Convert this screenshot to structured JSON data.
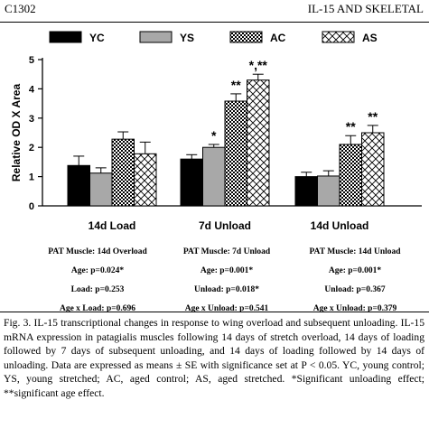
{
  "header": {
    "left": "C1302",
    "right": "IL-15 AND SKELETAL"
  },
  "chart_data": {
    "type": "bar",
    "ylabel": "Relative OD X Area",
    "ylim": [
      0,
      5
    ],
    "yticks": [
      "0",
      "1",
      "2",
      "3",
      "4",
      "5"
    ],
    "categories": [
      "14d Load",
      "7d Unload",
      "14d Unload"
    ],
    "series": [
      {
        "name": "YC",
        "values": [
          1.38,
          1.6,
          1.0
        ],
        "errors": [
          0.32,
          0.15,
          0.15
        ]
      },
      {
        "name": "YS",
        "values": [
          1.12,
          2.0,
          1.02
        ],
        "errors": [
          0.18,
          0.1,
          0.18
        ]
      },
      {
        "name": "AC",
        "values": [
          2.28,
          3.58,
          2.1
        ],
        "errors": [
          0.25,
          0.25,
          0.3
        ]
      },
      {
        "name": "AS",
        "values": [
          1.78,
          4.3,
          2.5
        ],
        "errors": [
          0.4,
          0.2,
          0.25
        ]
      }
    ],
    "annotations": [
      {
        "group": 1,
        "series": 1,
        "text": "*"
      },
      {
        "group": 1,
        "series": 2,
        "text": "**"
      },
      {
        "group": 1,
        "series": 3,
        "text": "*,**"
      },
      {
        "group": 2,
        "series": 2,
        "text": "**"
      },
      {
        "group": 2,
        "series": 3,
        "text": "**"
      }
    ],
    "legend": "top",
    "grid": false
  },
  "stats": [
    {
      "title": "PAT Muscle: 14d Overload",
      "age": "Age: p=0.024*",
      "second": "Load: p=0.253",
      "interaction": "Age x Load: p=0.696"
    },
    {
      "title": "PAT Muscle: 7d Unload",
      "age": "Age: p=0.001*",
      "second": "Unload: p=0.018*",
      "interaction": "Age x Unload: p=0.541"
    },
    {
      "title": "PAT Muscle: 14d Unload",
      "age": "Age: p=0.001*",
      "second": "Unload: p=0.367",
      "interaction": "Age x Unload: p=0.379"
    }
  ],
  "caption": "Fig. 3. IL-15 transcriptional changes in response to wing overload and subsequent unloading. IL-15 mRNA expression in patagialis muscles following 14 days of stretch overload, 14 days of loading followed by 7 days of subsequent unloading, and 14 days of loading followed by 14 days of unloading. Data are expressed as means ± SE with significance set at P < 0.05. YC, young control; YS, young stretched; AC, aged control; AS, aged stretched. *Significant unloading effect; **significant age effect."
}
